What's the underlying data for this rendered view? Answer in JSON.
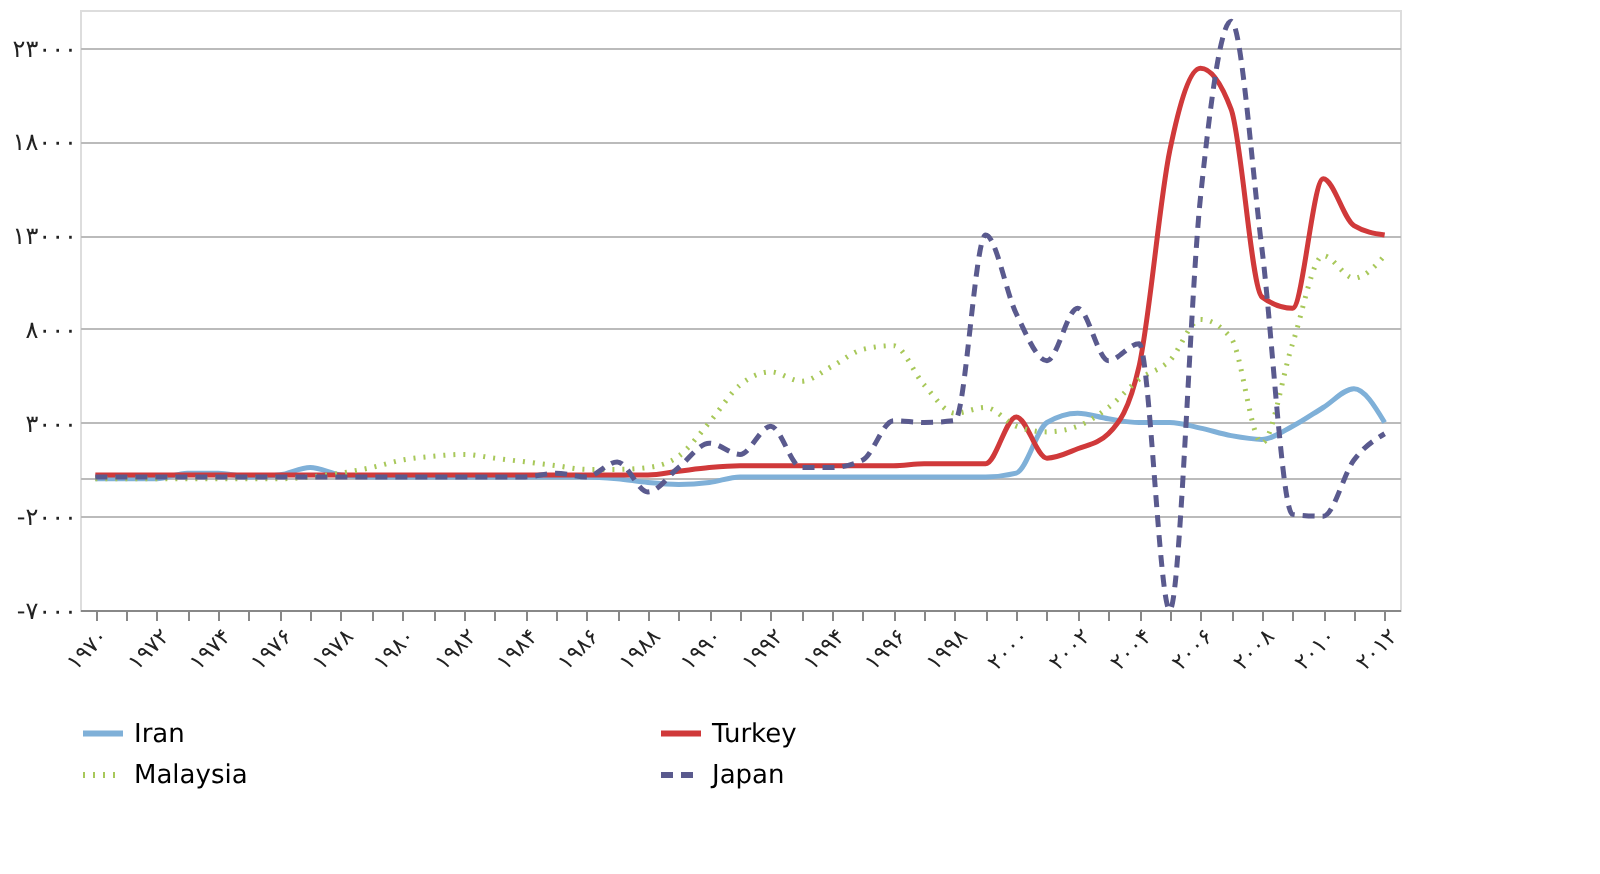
{
  "chart_data": {
    "type": "line",
    "categories": [
      "۱۹۷۰",
      null,
      "۱۹۷۲",
      null,
      "۱۹۷۴",
      null,
      "۱۹۷۶",
      null,
      "۱۹۷۸",
      null,
      "۱۹۸۰",
      null,
      "۱۹۸۲",
      null,
      "۱۹۸۴",
      null,
      "۱۹۸۶",
      null,
      "۱۹۸۸",
      null,
      "۱۹۹۰",
      null,
      "۱۹۹۲",
      null,
      "۱۹۹۴",
      null,
      "۱۹۹۶",
      null,
      "۱۹۹۸",
      null,
      "۲۰۰۰",
      null,
      "۲۰۰۲",
      null,
      "۲۰۰۴",
      null,
      "۲۰۰۶",
      null,
      "۲۰۰۸",
      null,
      "۲۰۱۰",
      null,
      "۲۰۱۲"
    ],
    "series": [
      {
        "name": "Iran",
        "color": "#7fb0d8",
        "line_style": "solid",
        "values": [
          0,
          0,
          0,
          300,
          300,
          100,
          200,
          600,
          200,
          100,
          100,
          100,
          100,
          100,
          100,
          100,
          100,
          0,
          -200,
          -300,
          -200,
          100,
          100,
          100,
          100,
          100,
          100,
          100,
          100,
          100,
          300,
          3000,
          3500,
          3200,
          3000,
          3000,
          2700,
          2300,
          2100,
          2800,
          3800,
          4800,
          3000
        ]
      },
      {
        "name": "Turkey",
        "color": "#d0393a",
        "line_style": "solid",
        "values": [
          200,
          200,
          200,
          200,
          200,
          200,
          200,
          200,
          200,
          200,
          200,
          200,
          200,
          200,
          200,
          200,
          200,
          200,
          200,
          400,
          600,
          700,
          700,
          700,
          700,
          700,
          700,
          800,
          800,
          800,
          3300,
          1100,
          1600,
          2400,
          6000,
          17500,
          21900,
          19700,
          9700,
          9100,
          16000,
          13500,
          13000
        ]
      },
      {
        "name": "Malaysia",
        "color": "#a8c85a",
        "line_style": "dotted",
        "values": [
          0,
          0,
          0,
          0,
          0,
          0,
          0,
          100,
          300,
          600,
          1000,
          1200,
          1300,
          1100,
          900,
          700,
          500,
          500,
          600,
          1200,
          3000,
          5000,
          5700,
          5200,
          6000,
          6900,
          7100,
          5000,
          3500,
          3800,
          2800,
          2500,
          2800,
          3800,
          5300,
          6300,
          8500,
          7500,
          1900,
          7200,
          11900,
          10700,
          11900
        ]
      },
      {
        "name": "Japan",
        "color": "#5a5a8e",
        "line_style": "dashed",
        "values": [
          100,
          100,
          100,
          100,
          100,
          100,
          100,
          100,
          100,
          100,
          100,
          100,
          100,
          100,
          100,
          300,
          100,
          900,
          -700,
          600,
          1900,
          1300,
          2800,
          600,
          600,
          1000,
          3100,
          3000,
          3100,
          13000,
          8800,
          6300,
          9100,
          6300,
          7200,
          -7000,
          15000,
          24400,
          12300,
          -1900,
          -2000,
          1000,
          2400
        ]
      }
    ],
    "ylim": [
      -7000,
      25000
    ],
    "yticks": [
      {
        "value": -7000,
        "label": "-۷۰۰۰"
      },
      {
        "value": -2000,
        "label": "-۲۰۰۰"
      },
      {
        "value": 0,
        "label": null
      },
      {
        "value": 3000,
        "label": "۳۰۰۰"
      },
      {
        "value": 8000,
        "label": "۸۰۰۰"
      },
      {
        "value": 13000,
        "label": "۱۳۰۰۰"
      },
      {
        "value": 18000,
        "label": "۱۸۰۰۰"
      },
      {
        "value": 23000,
        "label": "۲۳۰۰۰"
      }
    ],
    "grid": "y",
    "legend": "bottom",
    "marker": "none"
  }
}
